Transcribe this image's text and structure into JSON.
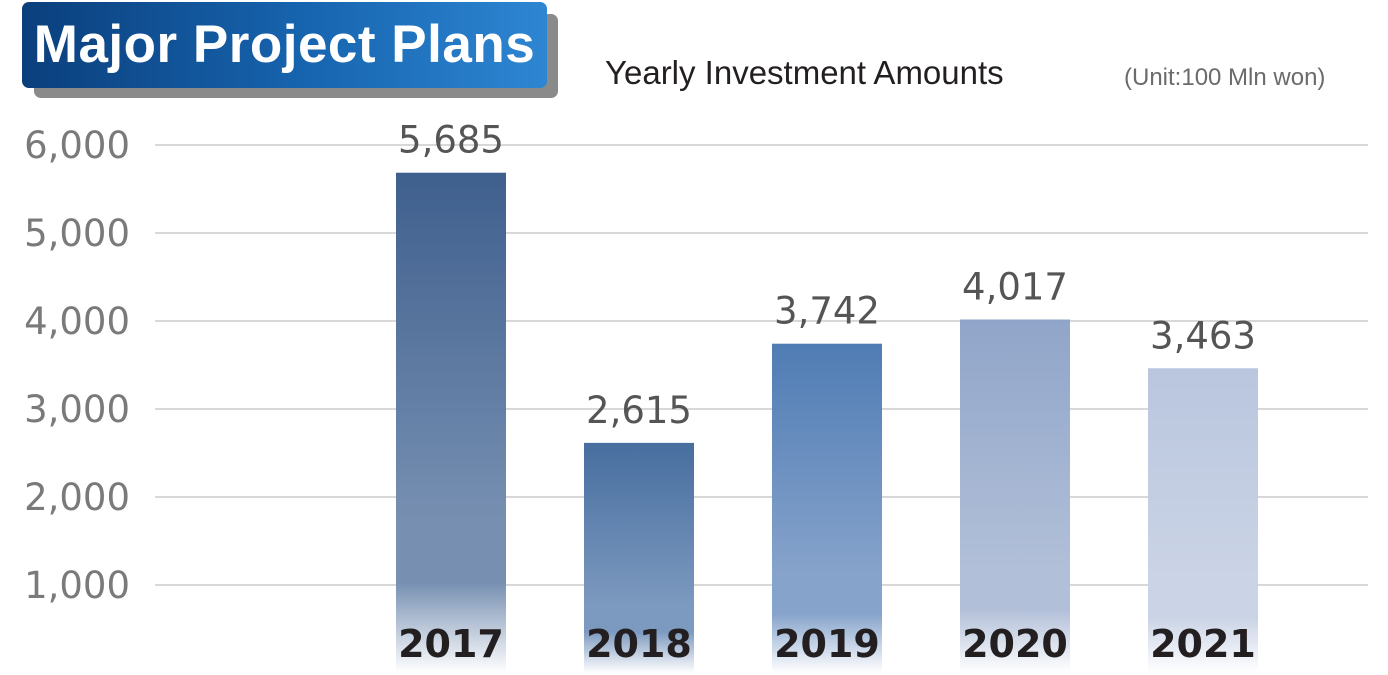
{
  "banner": {
    "title": "Major Project Plans"
  },
  "chart_data": {
    "type": "bar",
    "title": "Yearly Investment Amounts",
    "unit_note": "(Unit:100 Mln won)",
    "categories": [
      "2017",
      "2018",
      "2019",
      "2020",
      "2021"
    ],
    "values": [
      5685,
      2615,
      3742,
      4017,
      3463
    ],
    "value_labels": [
      "5,685",
      "2,615",
      "3,742",
      "4,017",
      "3,463"
    ],
    "y_ticks": [
      1000,
      2000,
      3000,
      4000,
      5000,
      6000
    ],
    "y_tick_labels": [
      "1,000",
      "2,000",
      "3,000",
      "4,000",
      "5,000",
      "6,000"
    ],
    "ylim": [
      0,
      6000
    ],
    "grid": true,
    "legend": "none",
    "colors": {
      "bars_top": [
        "#3f5f8d",
        "#476e9f",
        "#4f7cb4",
        "#90a5c9",
        "#b9c6de"
      ],
      "bars_mid": [
        "#7790b2",
        "#7c99bf",
        "#86a3cb",
        "#b1bfd8",
        "#cbd4e6"
      ],
      "grid": "#d8d8d8",
      "tick_label": "#7a7a7a",
      "value_label": "#555555",
      "category_label": "#231f20"
    }
  }
}
